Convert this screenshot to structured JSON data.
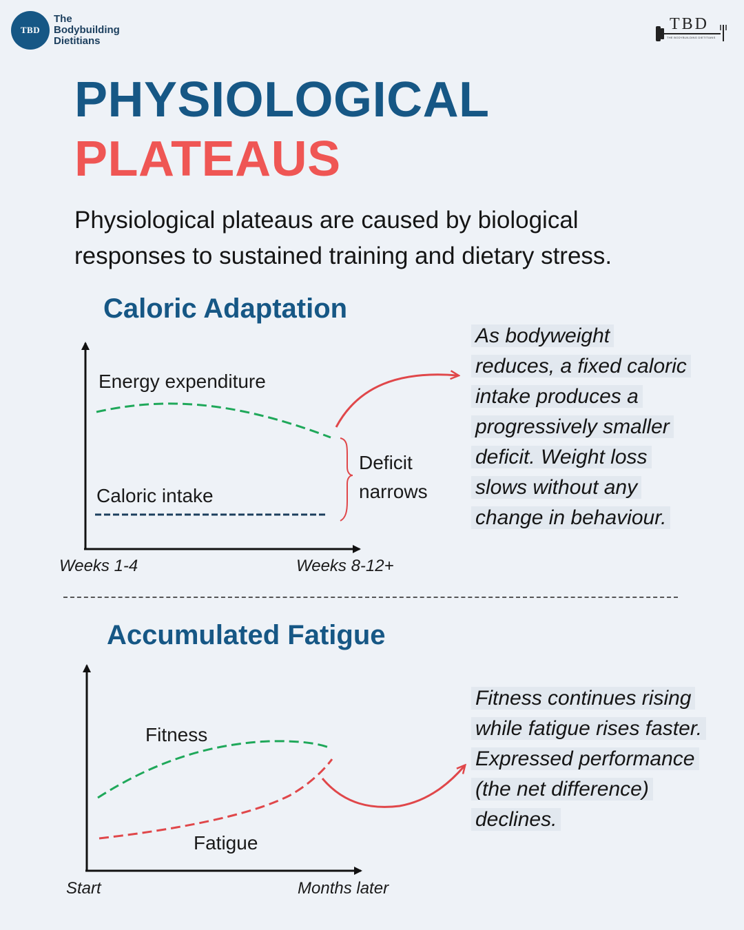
{
  "brand": {
    "badge": "TBD",
    "name_lines": [
      "The",
      "Bodybuilding",
      "Dietitians"
    ],
    "right_logo": "TBD",
    "right_logo_sub": "THE BODYBUILDING DIETITIANS"
  },
  "title": {
    "line1": "PHYSIOLOGICAL",
    "line2": "PLATEAUS"
  },
  "intro": "Physiological plateaus are caused by biological responses to sustained training and dietary stress.",
  "colors": {
    "navy": "#165785",
    "coral": "#ef5654",
    "green": "#1fa85a",
    "dark_navy": "#1c3f5e"
  },
  "sections": [
    {
      "title": "Caloric Adaptation",
      "labels": {
        "energy": "Energy expenditure",
        "intake": "Caloric intake",
        "deficit_line1": "Deficit",
        "deficit_line2": "narrows",
        "x_start": "Weeks 1-4",
        "x_end": "Weeks 8-12+"
      },
      "note_lines": [
        "As bodyweight",
        "reduces, a fixed caloric",
        "intake produces a",
        "progressively smaller",
        "deficit. Weight loss",
        "slows without any",
        "change in behaviour."
      ]
    },
    {
      "title": "Accumulated Fatigue",
      "labels": {
        "fitness": "Fitness",
        "fatigue": "Fatigue",
        "x_start": "Start",
        "x_end": "Months later"
      },
      "note_lines": [
        "Fitness continues rising",
        "while fatigue rises faster.",
        "Expressed performance",
        "(the net difference)",
        "declines."
      ]
    }
  ],
  "chart_data": [
    {
      "type": "line",
      "x": [
        "Weeks 1-4",
        "Weeks 8-12+"
      ],
      "series": [
        {
          "name": "Energy expenditure",
          "trend": "declining",
          "color": "#1fa85a",
          "style": "dashed"
        },
        {
          "name": "Caloric intake",
          "trend": "flat",
          "color": "#1c3f5e",
          "style": "dashed"
        }
      ],
      "annotation": "Deficit narrows"
    },
    {
      "type": "line",
      "x": [
        "Start",
        "Months later"
      ],
      "series": [
        {
          "name": "Fitness",
          "trend": "rising then plateau",
          "color": "#1fa85a",
          "style": "dashed"
        },
        {
          "name": "Fatigue",
          "trend": "rising faster",
          "color": "#e0474a",
          "style": "dashed"
        }
      ]
    }
  ]
}
